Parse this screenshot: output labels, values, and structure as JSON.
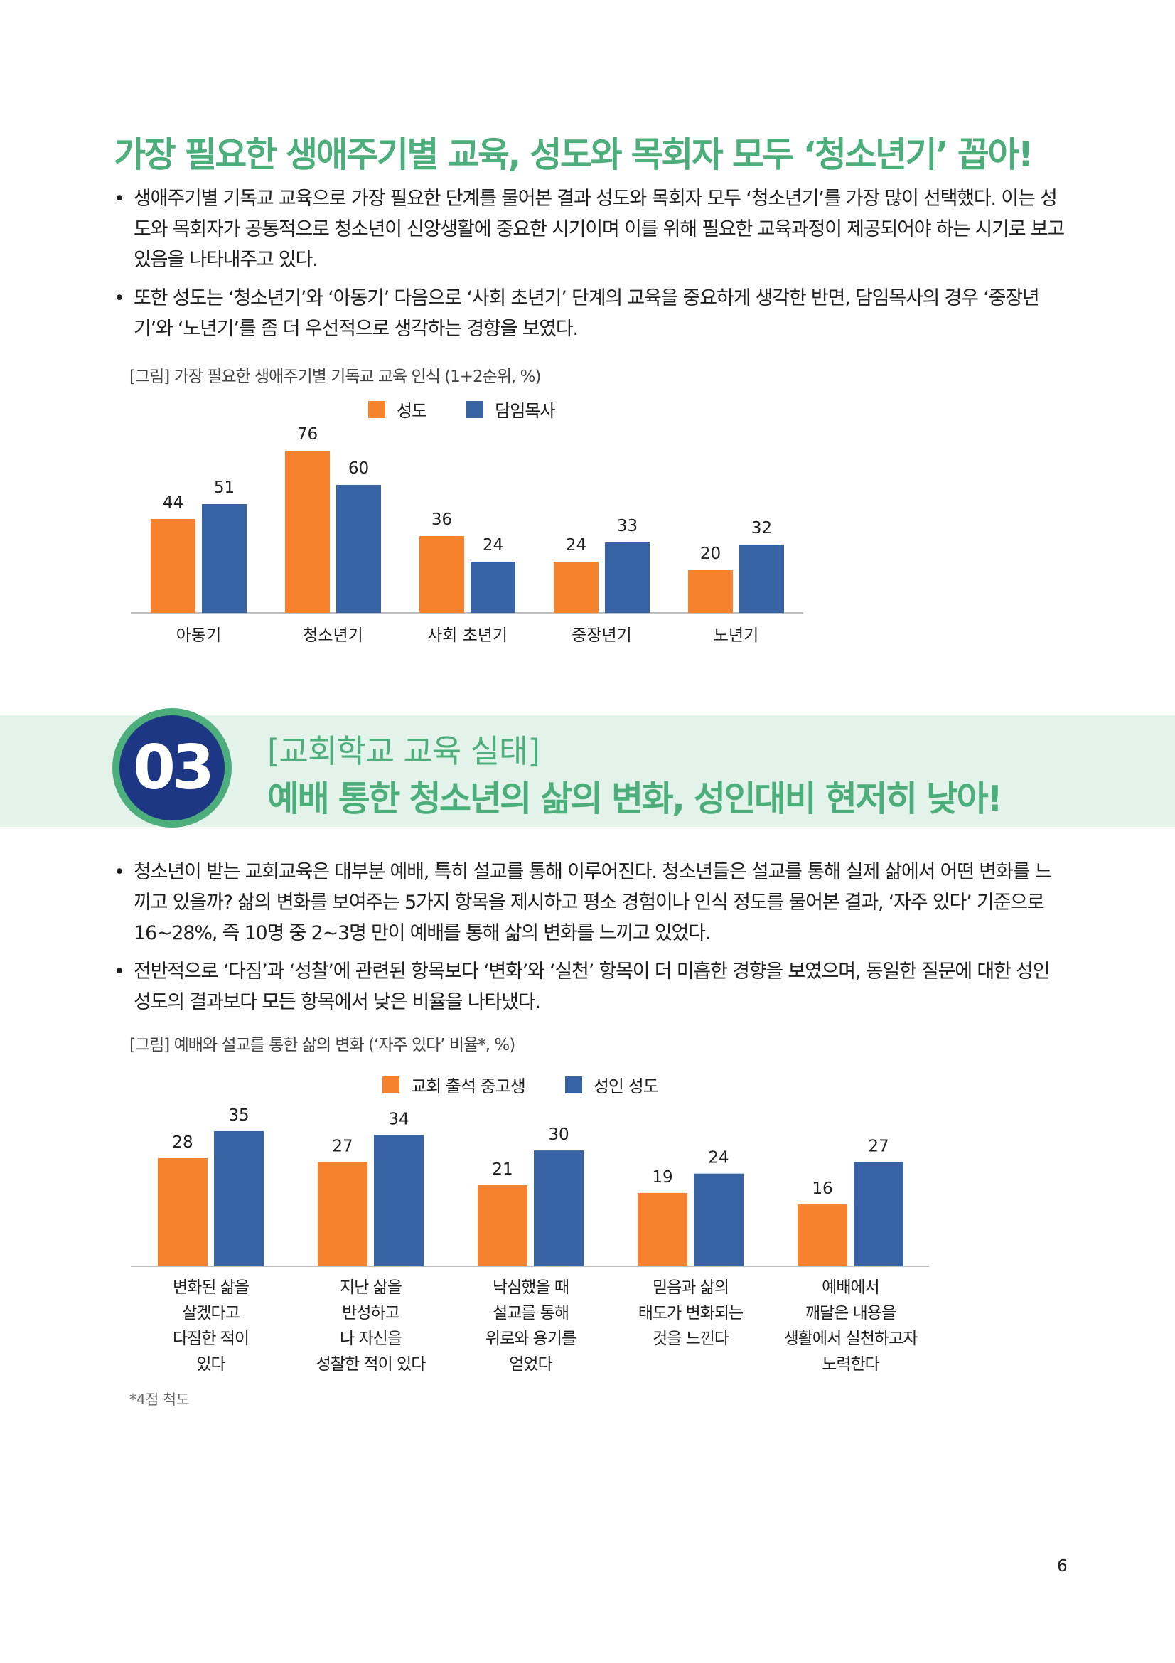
{
  "section1": {
    "heading": "가장 필요한 생애주기별 교육, 성도와 목회자 모두 ‘청소년기’ 꼽아!",
    "bullets": [
      "생애주기별 기독교 교육으로 가장 필요한 단계를 물어본 결과 성도와 목회자 모두 ‘청소년기’를 가장 많이 선택했다. 이는 성도와 목회자가 공통적으로 청소년이 신앙생활에 중요한 시기이며 이를 위해 필요한 교육과정이 제공되어야 하는 시기로 보고 있음을 나타내주고 있다.",
      "또한 성도는 ‘청소년기’와 ‘아동기’ 다음으로 ‘사회 초년기’ 단계의 교육을 중요하게 생각한 반면, 담임목사의 경우 ‘중장년기’와 ‘노년기’를 좀 더 우선적으로 생각하는 경향을 보였다."
    ],
    "caption": "[그림] 가장 필요한 생애주기별 기독교 교육 인식 (1+2순위, %)"
  },
  "section2": {
    "number": "03",
    "subtitle": "[교회학교 교육 실태]",
    "title": "예배 통한 청소년의 삶의 변화, 성인대비 현저히 낮아!",
    "bullets": [
      "청소년이 받는 교회교육은 대부분 예배, 특히 설교를 통해 이루어진다. 청소년들은 설교를 통해 실제 삶에서 어떤 변화를 느끼고 있을까? 삶의 변화를 보여주는 5가지 항목을 제시하고 평소 경험이나 인식 정도를 물어본 결과, ‘자주 있다’ 기준으로 16~28%, 즉 10명 중 2~3명 만이 예배를 통해 삶의 변화를 느끼고 있었다.",
      "전반적으로 ‘다짐’과 ‘성찰’에 관련된 항목보다 ‘변화’와 ‘실천’ 항목이 더 미흡한 경향을 보였으며, 동일한 질문에 대한 성인 성도의 결과보다 모든 항목에서 낮은 비율을 나타냈다."
    ],
    "caption": "[그림] 예배와 설교를 통한 삶의 변화 (‘자주 있다’ 비율*, %)",
    "note": "*4점 척도"
  },
  "page_number": "6",
  "colors": {
    "orange": "#f7822e",
    "blue": "#3763a4",
    "green": "#4cae7a",
    "navy": "#1d3784",
    "band": "#e4f3e9"
  },
  "chart_data": [
    {
      "type": "bar",
      "categories": [
        "아동기",
        "청소년기",
        "사회 초년기",
        "중장년기",
        "노년기"
      ],
      "series": [
        {
          "name": "성도",
          "values": [
            44,
            76,
            36,
            24,
            20
          ]
        },
        {
          "name": "담임목사",
          "values": [
            51,
            60,
            24,
            33,
            32
          ]
        }
      ],
      "ylim": [
        0,
        76
      ],
      "grid": false,
      "legend": "top-center"
    },
    {
      "type": "bar",
      "categories": [
        [
          "변화된 삶을",
          "살겠다고",
          "다짐한 적이",
          "있다"
        ],
        [
          "지난 삶을",
          "반성하고",
          "나 자신을",
          "성찰한 적이 있다"
        ],
        [
          "낙심했을 때",
          "설교를 통해",
          "위로와 용기를",
          "얻었다"
        ],
        [
          "믿음과 삶의",
          "태도가 변화되는",
          "것을 느낀다"
        ],
        [
          "예배에서",
          "깨달은 내용을",
          "생활에서 실천하고자",
          "노력한다"
        ]
      ],
      "series": [
        {
          "name": "교회 출석 중고생",
          "values": [
            28,
            27,
            21,
            19,
            16
          ]
        },
        {
          "name": "성인 성도",
          "values": [
            35,
            34,
            30,
            24,
            27
          ]
        }
      ],
      "ylim": [
        0,
        35
      ],
      "grid": false,
      "legend": "top-center"
    }
  ]
}
